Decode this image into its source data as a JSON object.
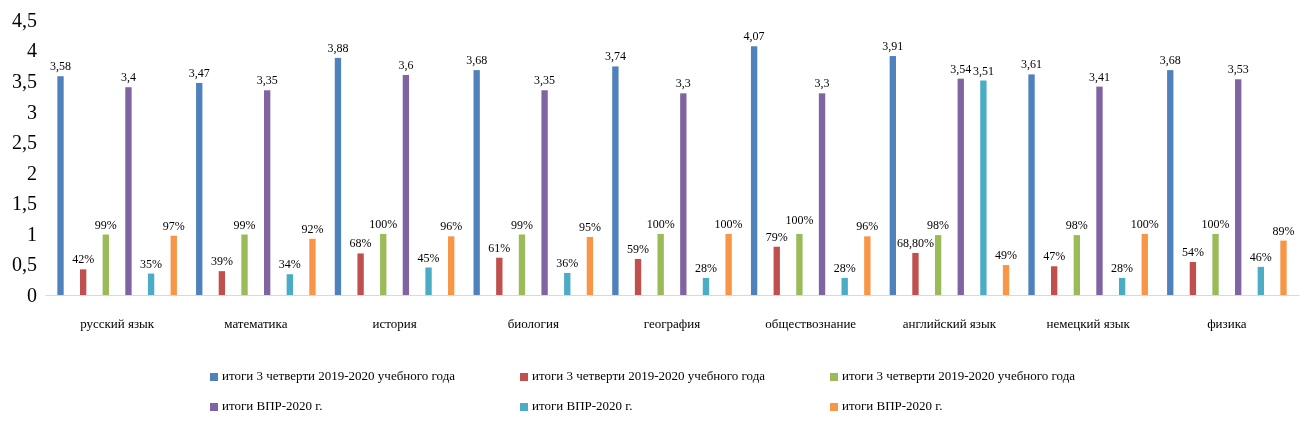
{
  "chart_data": {
    "type": "bar",
    "categories": [
      "русский язык",
      "математика",
      "история",
      "биология",
      "география",
      "обществознание",
      "английский язык",
      "немецкий язык",
      "физика"
    ],
    "ylim": [
      0,
      4.5
    ],
    "yticks": [
      0,
      {
        "value": 0.5,
        "label": "0,5"
      },
      1,
      {
        "value": 1.5,
        "label": "1,5"
      },
      2,
      {
        "value": 2.5,
        "label": "2,5"
      },
      3,
      {
        "value": 3.5,
        "label": "3,5"
      },
      4,
      {
        "value": 4.5,
        "label": "4,5"
      }
    ],
    "legend": "bottom",
    "series": [
      {
        "name": "итоги 3 четверти 2019-2020 учебного года",
        "color": "#4f81bd",
        "values": [
          3.58,
          3.47,
          3.88,
          3.68,
          3.74,
          4.07,
          3.91,
          3.61,
          3.68
        ],
        "value_labels": [
          "3,58",
          "3,47",
          "3,88",
          "3,68",
          "3,74",
          "4,07",
          "3,91",
          "3,61",
          "3,68"
        ]
      },
      {
        "name": "итоги 3 четверти 2019-2020 учебного года",
        "color": "#c0504d",
        "values": [
          0.42,
          0.39,
          0.68,
          0.61,
          0.59,
          0.79,
          0.688,
          0.47,
          0.54
        ],
        "value_labels": [
          "42%",
          "39%",
          "68%",
          "61%",
          "59%",
          "79%",
          "68,80%",
          "47%",
          "54%"
        ]
      },
      {
        "name": "итоги 3 четверти 2019-2020 учебного года",
        "color": "#9bbb59",
        "values": [
          0.99,
          0.99,
          1.0,
          0.99,
          1.0,
          1.0,
          0.98,
          0.98,
          1.0
        ],
        "value_labels": [
          "99%",
          "99%",
          "100%",
          "99%",
          "100%",
          "100%",
          "98%",
          "98%",
          "100%"
        ]
      },
      {
        "name": "итоги ВПР-2020 г.",
        "color": "#8064a2",
        "values": [
          3.4,
          3.35,
          3.6,
          3.35,
          3.3,
          3.3,
          3.54,
          3.41,
          3.53
        ],
        "value_labels": [
          "3,4",
          "3,35",
          "3,6",
          "3,35",
          "3,3",
          "3,3",
          "3,54",
          "3,41",
          "3,53"
        ]
      },
      {
        "name": "итоги ВПР-2020 г.",
        "color": "#4bacc6",
        "values": [
          0.35,
          0.34,
          0.45,
          0.36,
          0.28,
          0.28,
          3.51,
          0.28,
          0.46
        ],
        "value_labels": [
          "35%",
          "34%",
          "45%",
          "36%",
          "28%",
          "28%",
          "3,51",
          "28%",
          "46%"
        ]
      },
      {
        "name": "итоги ВПР-2020 г.",
        "color": "#f79646",
        "values": [
          0.97,
          0.92,
          0.96,
          0.95,
          1.0,
          0.96,
          0.49,
          1.0,
          0.89
        ],
        "value_labels": [
          "97%",
          "92%",
          "96%",
          "95%",
          "100%",
          "96%",
          "49%",
          "100%",
          "89%"
        ]
      }
    ]
  }
}
